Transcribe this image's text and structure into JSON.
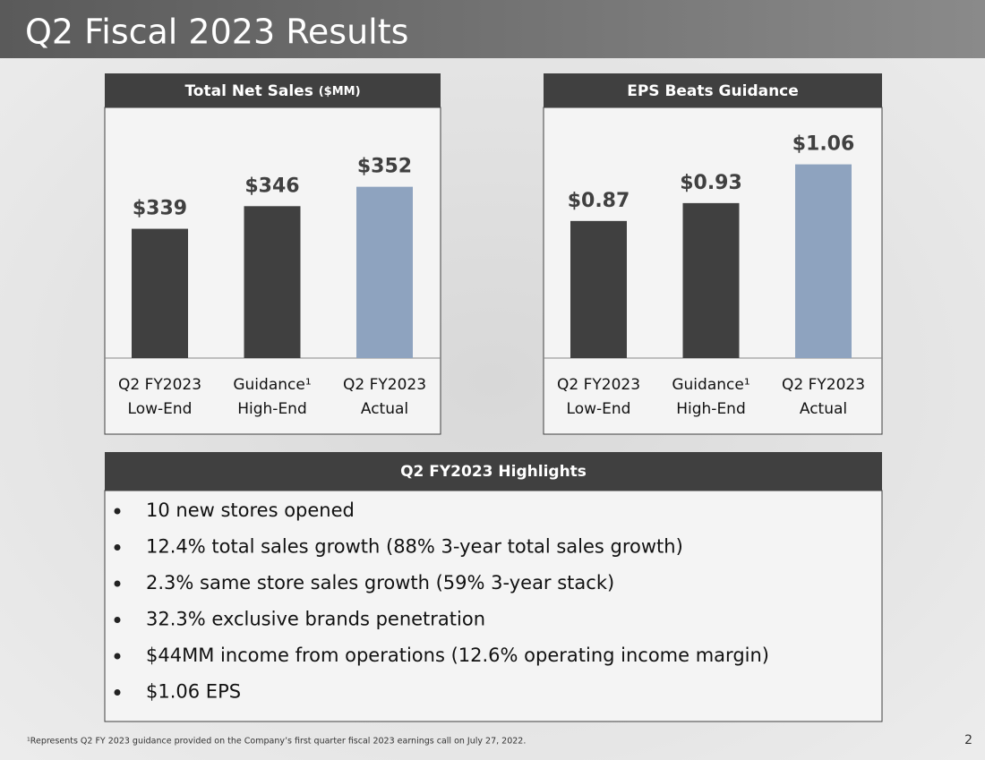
{
  "title": "Q2 Fiscal 2023 Results",
  "chart_data": [
    {
      "type": "bar",
      "title": "Total Net Sales",
      "unit": "($MM)",
      "categories": [
        [
          "Q2 FY2023",
          "Low-End"
        ],
        [
          "Guidance¹",
          "High-End"
        ],
        [
          "Q2 FY2023",
          "Actual"
        ]
      ],
      "values": [
        339,
        346,
        352
      ],
      "value_labels": [
        "$339",
        "$346",
        "$352"
      ],
      "colors": [
        "#404040",
        "#404040",
        "#8ea3bf"
      ],
      "ylim": [
        299,
        376
      ]
    },
    {
      "type": "bar",
      "title": "EPS Beats Guidance",
      "categories": [
        [
          "Q2 FY2023",
          "Low-End"
        ],
        [
          "Guidance¹",
          "High-End"
        ],
        [
          "Q2 FY2023",
          "Actual"
        ]
      ],
      "values": [
        0.87,
        0.93,
        1.06
      ],
      "value_labels": [
        "$0.87",
        "$0.93",
        "$1.06"
      ],
      "colors": [
        "#404040",
        "#404040",
        "#8ea3bf"
      ],
      "ylim": [
        0.41,
        1.245
      ]
    }
  ],
  "highlights": {
    "title": "Q2 FY2023 Highlights",
    "items": [
      "10 new stores opened",
      "12.4% total sales growth (88% 3-year total sales growth)",
      "2.3% same store sales growth (59% 3-year stack)",
      "32.3% exclusive brands penetration",
      "$44MM income from operations (12.6% operating income margin)",
      "$1.06 EPS"
    ]
  },
  "footnote": "¹Represents Q2 FY 2023 guidance provided on the Company’s first quarter fiscal 2023 earnings call on July 27, 2022.",
  "page_number": "2"
}
